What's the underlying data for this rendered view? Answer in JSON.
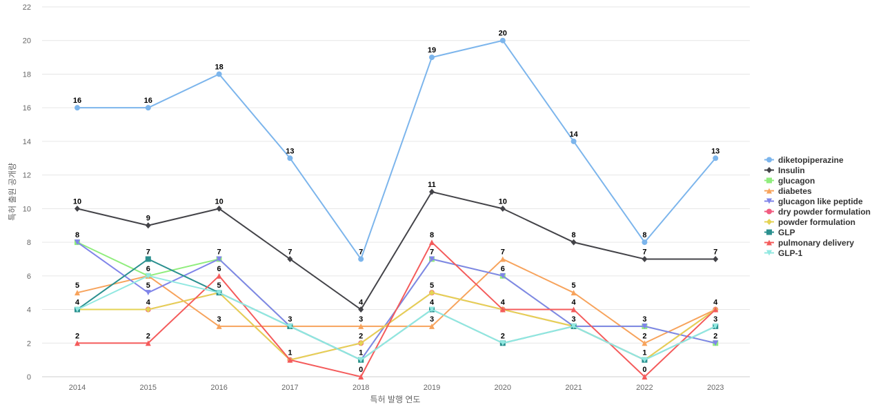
{
  "chart_data": {
    "type": "line",
    "title": "",
    "xlabel": "특허 발행 연도",
    "ylabel": "특허 출원 공개량",
    "ylim": [
      0,
      22
    ],
    "ytick_step": 2,
    "grid": true,
    "legend_position": "right",
    "categories": [
      "2014",
      "2015",
      "2016",
      "2017",
      "2018",
      "2019",
      "2020",
      "2021",
      "2022",
      "2023"
    ],
    "series": [
      {
        "name": "diketopiperazine",
        "color": "#7cb5ec",
        "marker": "circle",
        "values": [
          16,
          16,
          18,
          13,
          7,
          19,
          20,
          14,
          8,
          13
        ]
      },
      {
        "name": "Insulin",
        "color": "#434348",
        "marker": "diamond",
        "values": [
          10,
          9,
          10,
          7,
          4,
          11,
          10,
          8,
          7,
          7
        ]
      },
      {
        "name": "glucagon",
        "color": "#90ed7d",
        "marker": "square",
        "values": [
          8,
          6,
          7,
          3,
          1,
          7,
          6,
          3,
          3,
          2
        ]
      },
      {
        "name": "diabetes",
        "color": "#f7a35c",
        "marker": "triangle",
        "values": [
          5,
          6,
          3,
          3,
          3,
          3,
          7,
          5,
          2,
          4
        ]
      },
      {
        "name": "glucagon like peptide",
        "color": "#8085e9",
        "marker": "triangle-down",
        "values": [
          8,
          5,
          7,
          3,
          1,
          7,
          6,
          3,
          3,
          2
        ]
      },
      {
        "name": "dry powder formulation",
        "color": "#f15c80",
        "marker": "circle",
        "values": [
          4,
          4,
          5,
          1,
          2,
          5,
          4,
          3,
          1,
          4
        ]
      },
      {
        "name": "powder formulation",
        "color": "#e4d354",
        "marker": "diamond",
        "values": [
          4,
          4,
          5,
          1,
          2,
          5,
          4,
          3,
          1,
          4
        ]
      },
      {
        "name": "GLP",
        "color": "#2b908f",
        "marker": "square",
        "values": [
          4,
          7,
          5,
          3,
          1,
          4,
          2,
          3,
          1,
          3
        ]
      },
      {
        "name": "pulmonary delivery",
        "color": "#f45b5b",
        "marker": "triangle",
        "values": [
          2,
          2,
          6,
          1,
          0,
          8,
          4,
          4,
          0,
          4
        ]
      },
      {
        "name": "GLP-1",
        "color": "#91e8e1",
        "marker": "triangle-down",
        "values": [
          4,
          6,
          5,
          3,
          1,
          4,
          2,
          3,
          1,
          3
        ]
      }
    ],
    "data_labels": [
      {
        "series": 0,
        "index": 0,
        "text": "16"
      },
      {
        "series": 0,
        "index": 1,
        "text": "16"
      },
      {
        "series": 0,
        "index": 2,
        "text": "18"
      },
      {
        "series": 0,
        "index": 3,
        "text": "13"
      },
      {
        "series": 0,
        "index": 4,
        "text": "7"
      },
      {
        "series": 0,
        "index": 5,
        "text": "19"
      },
      {
        "series": 0,
        "index": 6,
        "text": "20"
      },
      {
        "series": 0,
        "index": 7,
        "text": "14"
      },
      {
        "series": 0,
        "index": 8,
        "text": "8"
      },
      {
        "series": 0,
        "index": 9,
        "text": "13"
      },
      {
        "series": 1,
        "index": 0,
        "text": "10"
      },
      {
        "series": 1,
        "index": 1,
        "text": "9"
      },
      {
        "series": 1,
        "index": 2,
        "text": "10"
      },
      {
        "series": 1,
        "index": 3,
        "text": "7"
      },
      {
        "series": 1,
        "index": 4,
        "text": "4"
      },
      {
        "series": 1,
        "index": 5,
        "text": "11"
      },
      {
        "series": 1,
        "index": 6,
        "text": "10"
      },
      {
        "series": 1,
        "index": 7,
        "text": "8"
      },
      {
        "series": 1,
        "index": 8,
        "text": "7"
      },
      {
        "series": 1,
        "index": 9,
        "text": "7"
      },
      {
        "series": 2,
        "index": 0,
        "text": "8"
      },
      {
        "series": 2,
        "index": 2,
        "text": "7"
      },
      {
        "series": 2,
        "index": 5,
        "text": "7"
      },
      {
        "series": 2,
        "index": 6,
        "text": "6"
      },
      {
        "series": 2,
        "index": 8,
        "text": "3"
      },
      {
        "series": 3,
        "index": 0,
        "text": "5"
      },
      {
        "series": 3,
        "index": 1,
        "text": "6"
      },
      {
        "series": 3,
        "index": 2,
        "text": "3"
      },
      {
        "series": 3,
        "index": 4,
        "text": "3"
      },
      {
        "series": 3,
        "index": 5,
        "text": "3"
      },
      {
        "series": 3,
        "index": 6,
        "text": "7"
      },
      {
        "series": 3,
        "index": 7,
        "text": "5"
      },
      {
        "series": 3,
        "index": 8,
        "text": "2"
      },
      {
        "series": 3,
        "index": 9,
        "text": "4"
      },
      {
        "series": 4,
        "index": 1,
        "text": "5"
      },
      {
        "series": 4,
        "index": 9,
        "text": "2"
      },
      {
        "series": 5,
        "index": 0,
        "text": "4"
      },
      {
        "series": 5,
        "index": 1,
        "text": "4"
      },
      {
        "series": 5,
        "index": 2,
        "text": "5"
      },
      {
        "series": 5,
        "index": 3,
        "text": "1"
      },
      {
        "series": 5,
        "index": 4,
        "text": "2"
      },
      {
        "series": 5,
        "index": 5,
        "text": "5"
      },
      {
        "series": 5,
        "index": 6,
        "text": "4"
      },
      {
        "series": 7,
        "index": 1,
        "text": "7"
      },
      {
        "series": 7,
        "index": 3,
        "text": "3"
      },
      {
        "series": 7,
        "index": 4,
        "text": "1"
      },
      {
        "series": 7,
        "index": 5,
        "text": "4"
      },
      {
        "series": 7,
        "index": 6,
        "text": "2"
      },
      {
        "series": 7,
        "index": 7,
        "text": "3"
      },
      {
        "series": 7,
        "index": 8,
        "text": "1"
      },
      {
        "series": 7,
        "index": 9,
        "text": "3"
      },
      {
        "series": 8,
        "index": 0,
        "text": "2"
      },
      {
        "series": 8,
        "index": 1,
        "text": "2"
      },
      {
        "series": 8,
        "index": 2,
        "text": "6"
      },
      {
        "series": 8,
        "index": 4,
        "text": "0"
      },
      {
        "series": 8,
        "index": 5,
        "text": "8"
      },
      {
        "series": 8,
        "index": 7,
        "text": "4"
      },
      {
        "series": 8,
        "index": 8,
        "text": "0"
      }
    ]
  }
}
